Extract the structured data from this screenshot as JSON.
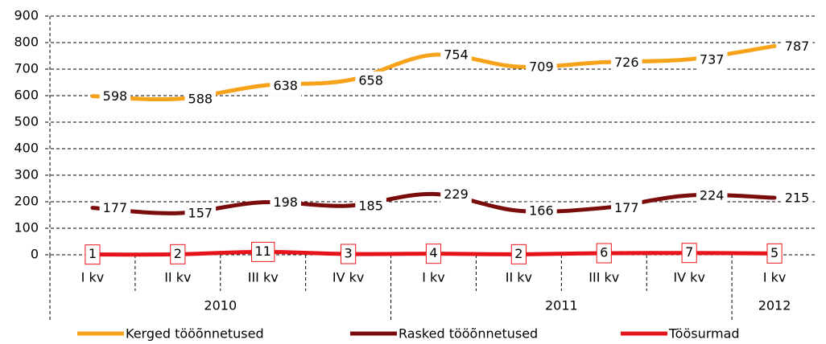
{
  "chart_data": {
    "type": "line",
    "categories": [
      "I kv",
      "II kv",
      "III kv",
      "IV kv",
      "I kv",
      "II kv",
      "III kv",
      "IV kv",
      "I kv"
    ],
    "groups": [
      {
        "name": "2010",
        "count": 4
      },
      {
        "name": "2011",
        "count": 4
      },
      {
        "name": "2012",
        "count": 1
      }
    ],
    "series": [
      {
        "name": "Kerged tööõnnetused",
        "color": "#f7a21b",
        "values": [
          598,
          588,
          638,
          658,
          754,
          709,
          726,
          737,
          787
        ]
      },
      {
        "name": "Rasked tööõnnetused",
        "color": "#7b0c0c",
        "values": [
          177,
          157,
          198,
          185,
          229,
          166,
          177,
          224,
          215
        ]
      },
      {
        "name": "Töösurmad",
        "color": "#e8141b",
        "values": [
          1,
          2,
          11,
          3,
          4,
          2,
          6,
          7,
          5
        ]
      }
    ],
    "ylim": [
      0,
      900
    ],
    "yticks": [
      0,
      100,
      200,
      300,
      400,
      500,
      600,
      700,
      800,
      900
    ],
    "grid": true
  }
}
